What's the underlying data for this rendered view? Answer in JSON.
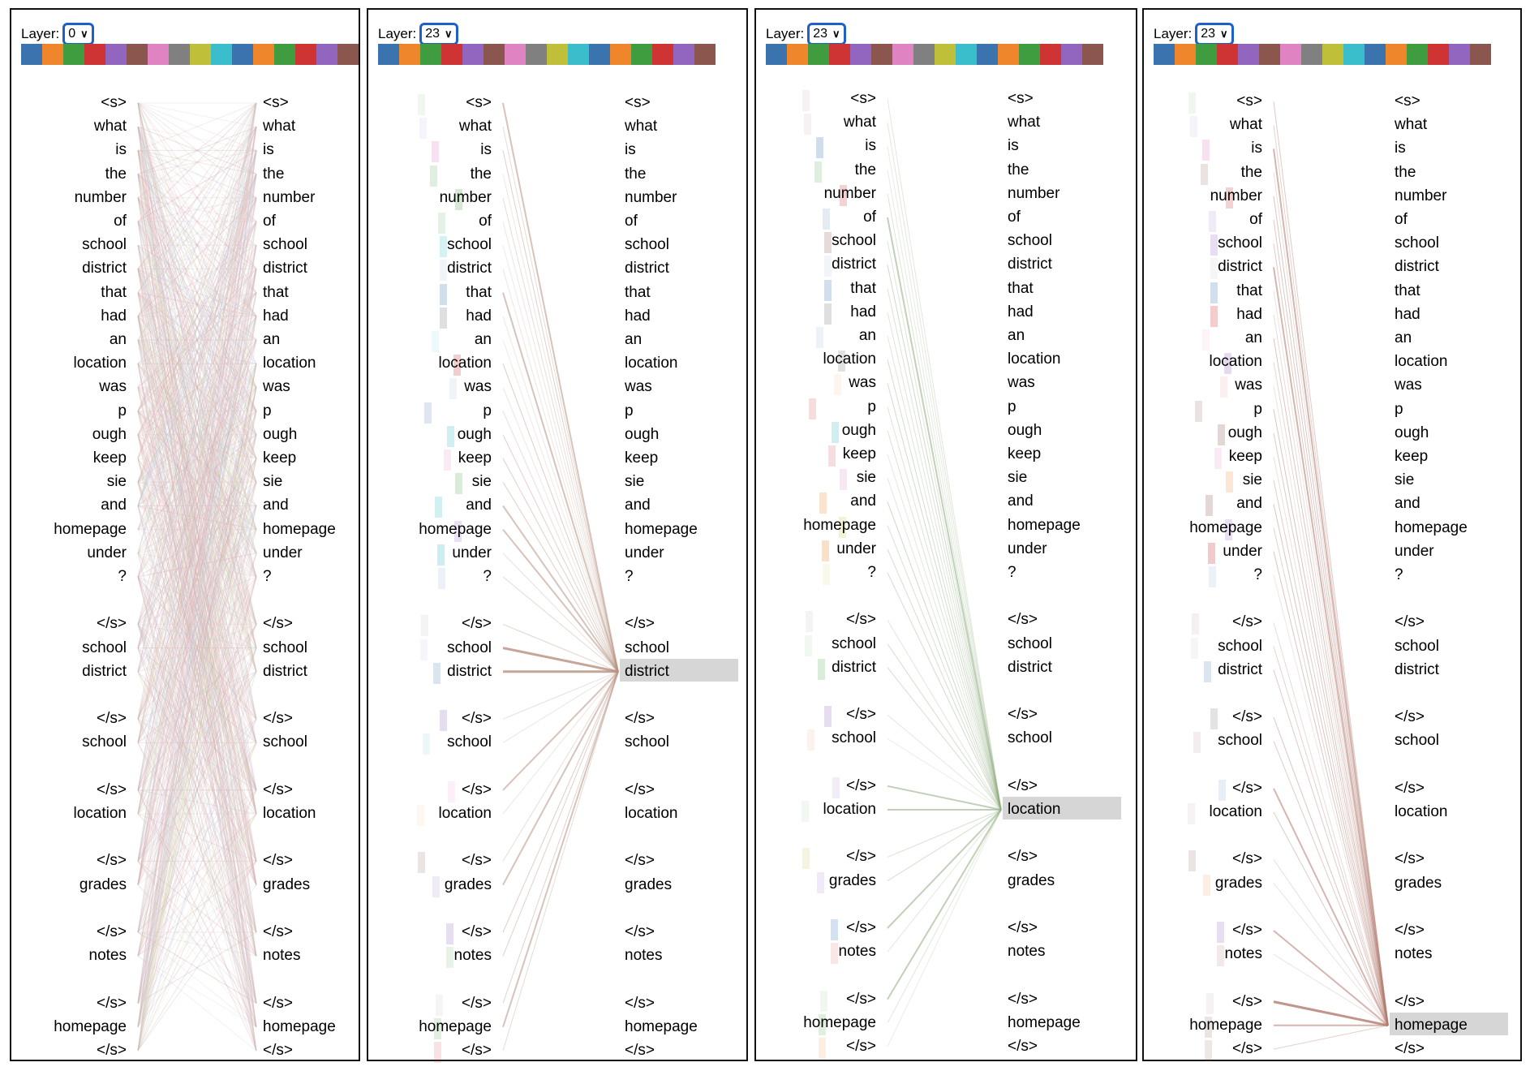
{
  "layer_label": "Layer:",
  "head_colors": [
    "#3a73ad",
    "#f0862b",
    "#3f9c3f",
    "#cf3434",
    "#9265bf",
    "#8b564d",
    "#df83c2",
    "#808080",
    "#bfbf3a",
    "#3bbecc",
    "#3a73ad",
    "#f0862b",
    "#3f9c3f",
    "#cf3434",
    "#9265bf",
    "#8b564d"
  ],
  "tokens": [
    "<s>",
    "what",
    "is",
    "the",
    "number",
    "of",
    "school",
    "district",
    "that",
    "had",
    "an",
    "location",
    "was",
    "p",
    "ough",
    "keep",
    "sie",
    "and",
    "homepage",
    "under",
    "?",
    "",
    "</s>",
    "school",
    "district",
    "",
    "</s>",
    "school",
    "",
    "</s>",
    "location",
    "",
    "</s>",
    "grades",
    "",
    "</s>",
    "notes",
    "",
    "</s>",
    "homepage",
    "</s>"
  ],
  "panels": [
    {
      "layer": "0",
      "selected": null,
      "mode": "all"
    },
    {
      "layer": "23",
      "selected": 24,
      "mode": "focus"
    },
    {
      "layer": "23",
      "selected": 30,
      "mode": "focus"
    },
    {
      "layer": "23",
      "selected": 39,
      "mode": "focus"
    }
  ]
}
